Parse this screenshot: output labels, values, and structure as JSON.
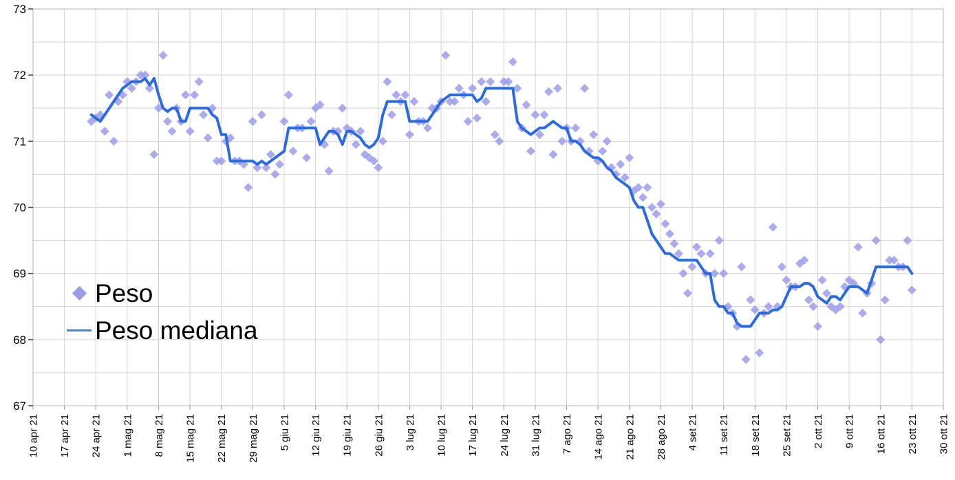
{
  "chart_data": {
    "type": "scatter+line",
    "title": "",
    "x_axis": {
      "tick_labels": [
        "10 apr 21",
        "17 apr 21",
        "24 apr 21",
        "1 mag 21",
        "8 mag 21",
        "15 mag 21",
        "22 mag 21",
        "29 mag 21",
        "5 giu 21",
        "12 giu 21",
        "19 giu 21",
        "26 giu 21",
        "3 lug 21",
        "10 lug 21",
        "17 lug 21",
        "24 lug 21",
        "31 lug 21",
        "7 ago 21",
        "14 ago 21",
        "21 ago 21",
        "28 ago 21",
        "4 set 21",
        "11 set 21",
        "18 set 21",
        "25 set 21",
        "2 ott 21",
        "9 ott 21",
        "16 ott 21",
        "23 ott 21",
        "30 ott 21"
      ],
      "tick_interval_days": 7
    },
    "y_axis": {
      "tick_labels": [
        "73",
        "72",
        "71",
        "70",
        "69",
        "68",
        "67"
      ],
      "min": 67,
      "max": 73,
      "minor_step": 0.5
    },
    "grid": true,
    "legend_position": "inside-left",
    "legend": [
      {
        "label": "Peso",
        "marker": "diamond"
      },
      {
        "label": "Peso mediana",
        "marker": "line"
      }
    ],
    "series_start_offset_days": 13,
    "series": [
      {
        "name": "Peso",
        "type": "scatter",
        "color": "#9c9cea",
        "values": [
          71.3,
          71.35,
          71.4,
          71.15,
          71.7,
          71.0,
          71.6,
          71.7,
          71.9,
          71.8,
          71.9,
          72.0,
          72.0,
          71.8,
          70.8,
          71.5,
          72.3,
          71.3,
          71.15,
          71.5,
          71.3,
          71.7,
          71.15,
          71.7,
          71.9,
          71.4,
          71.05,
          71.5,
          70.7,
          70.7,
          71.0,
          71.05,
          70.7,
          70.7,
          70.65,
          70.3,
          71.3,
          70.6,
          71.4,
          70.6,
          70.8,
          70.5,
          70.65,
          71.3,
          71.7,
          70.85,
          71.2,
          71.2,
          70.75,
          71.3,
          71.5,
          71.55,
          70.95,
          70.55,
          71.15,
          71.15,
          71.5,
          71.2,
          71.15,
          70.95,
          71.15,
          70.8,
          70.75,
          70.7,
          70.6,
          71.0,
          71.9,
          71.4,
          71.7,
          71.6,
          71.7,
          71.1,
          71.6,
          71.3,
          71.3,
          71.2,
          71.5,
          71.5,
          71.6,
          72.3,
          71.6,
          71.6,
          71.8,
          71.7,
          71.3,
          71.8,
          71.35,
          71.9,
          71.6,
          71.9,
          71.1,
          71.0,
          71.9,
          71.9,
          72.2,
          71.8,
          71.2,
          71.55,
          70.85,
          71.4,
          71.1,
          71.4,
          71.75,
          70.8,
          71.8,
          71.0,
          71.2,
          71.0,
          71.2,
          71.0,
          71.8,
          70.85,
          71.1,
          70.7,
          70.85,
          71.0,
          70.6,
          70.5,
          70.65,
          70.45,
          70.75,
          70.25,
          70.3,
          70.15,
          70.3,
          70.0,
          69.9,
          70.05,
          69.75,
          69.6,
          69.45,
          69.3,
          69.0,
          68.7,
          69.1,
          69.4,
          69.3,
          69.0,
          69.3,
          69.0,
          69.5,
          69.0,
          68.5,
          68.4,
          68.2,
          69.1,
          67.7,
          68.6,
          68.45,
          67.8,
          68.4,
          68.5,
          69.7,
          68.5,
          69.1,
          68.9,
          68.8,
          68.8,
          69.15,
          69.2,
          68.6,
          68.5,
          68.2,
          68.9,
          68.7,
          68.5,
          68.45,
          68.5,
          68.8,
          68.9,
          68.85,
          69.4,
          68.4,
          68.7,
          68.85,
          69.5,
          68.0,
          68.6,
          69.2,
          69.2,
          69.1,
          69.1,
          69.5,
          68.75
        ]
      },
      {
        "name": "Peso mediana",
        "type": "line",
        "color": "#2b6be0",
        "values": [
          71.4,
          71.35,
          71.3,
          71.4,
          71.5,
          71.6,
          71.7,
          71.8,
          71.85,
          71.9,
          71.9,
          71.9,
          71.95,
          71.85,
          71.95,
          71.7,
          71.5,
          71.45,
          71.5,
          71.5,
          71.3,
          71.3,
          71.5,
          71.5,
          71.5,
          71.5,
          71.5,
          71.4,
          71.35,
          71.1,
          71.1,
          70.7,
          70.7,
          70.7,
          70.7,
          70.7,
          70.7,
          70.65,
          70.7,
          70.65,
          70.7,
          70.75,
          70.8,
          70.85,
          71.2,
          71.2,
          71.2,
          71.2,
          71.2,
          71.2,
          71.2,
          70.95,
          71.05,
          71.15,
          71.15,
          71.1,
          70.95,
          71.15,
          71.15,
          71.1,
          71.05,
          70.95,
          70.9,
          70.95,
          71.05,
          71.4,
          71.6,
          71.6,
          71.6,
          71.6,
          71.6,
          71.3,
          71.3,
          71.3,
          71.3,
          71.3,
          71.4,
          71.5,
          71.6,
          71.65,
          71.7,
          71.7,
          71.7,
          71.7,
          71.7,
          71.7,
          71.6,
          71.65,
          71.8,
          71.8,
          71.8,
          71.8,
          71.8,
          71.8,
          71.8,
          71.3,
          71.2,
          71.15,
          71.1,
          71.15,
          71.2,
          71.2,
          71.25,
          71.3,
          71.25,
          71.2,
          71.2,
          71.0,
          71.0,
          70.95,
          70.85,
          70.8,
          70.75,
          70.75,
          70.7,
          70.6,
          70.55,
          70.45,
          70.4,
          70.35,
          70.3,
          70.1,
          70.0,
          70.0,
          69.8,
          69.6,
          69.5,
          69.4,
          69.3,
          69.3,
          69.25,
          69.2,
          69.2,
          69.2,
          69.2,
          69.2,
          69.1,
          69.0,
          69.0,
          68.6,
          68.5,
          68.5,
          68.4,
          68.4,
          68.25,
          68.2,
          68.2,
          68.2,
          68.3,
          68.4,
          68.4,
          68.4,
          68.45,
          68.45,
          68.5,
          68.65,
          68.8,
          68.8,
          68.8,
          68.85,
          68.85,
          68.8,
          68.65,
          68.6,
          68.55,
          68.65,
          68.65,
          68.6,
          68.7,
          68.8,
          68.8,
          68.8,
          68.75,
          68.7,
          68.9,
          69.1,
          69.1,
          69.1,
          69.1,
          69.1,
          69.1,
          69.1,
          69.1,
          69.0
        ]
      }
    ]
  },
  "colors": {
    "background": "#ffffff",
    "grid": "#d4d4d4",
    "frame": "#b5b5b5",
    "axis_tick": "#444444",
    "x_tick_mark": "#999999",
    "axis_text": "#000000",
    "scatter": "#9c9cea",
    "line": "#2b6be0",
    "legend_line": "#4d82d6"
  }
}
